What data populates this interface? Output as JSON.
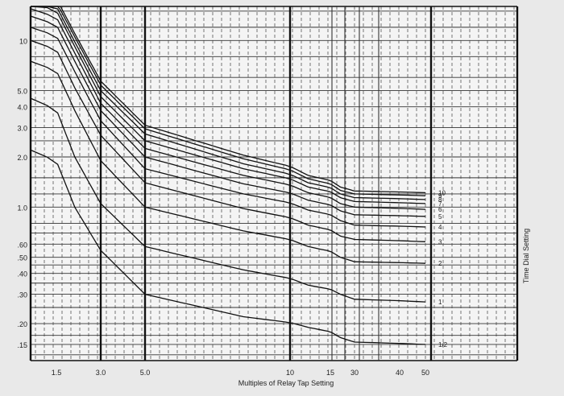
{
  "chart_data": {
    "type": "line",
    "title": "",
    "xlabel": "Multiples of Relay Tap Setting",
    "ylabel": "",
    "side_label": "Time Dial Setting",
    "x_scale": "log",
    "y_scale": "log",
    "xlim": [
      1.4,
      60
    ],
    "ylim": [
      0.12,
      16
    ],
    "grid": true,
    "x_ticks": [
      {
        "value": 1.5,
        "label": "1.5"
      },
      {
        "value": 3.0,
        "label": "3.0"
      },
      {
        "value": 5.0,
        "label": "5.0"
      },
      {
        "value": 10,
        "label": "10"
      },
      {
        "value": 15,
        "label": "15"
      },
      {
        "value": 30,
        "label": "30"
      },
      {
        "value": 40,
        "label": "40"
      },
      {
        "value": 50,
        "label": "50"
      }
    ],
    "y_ticks": [
      {
        "value": 10,
        "label": "10"
      },
      {
        "value": 5.0,
        "label": "5.0"
      },
      {
        "value": 4.0,
        "label": "4.0"
      },
      {
        "value": 3.0,
        "label": "3.0"
      },
      {
        "value": 2.0,
        "label": "2.0"
      },
      {
        "value": 1.0,
        "label": "1.0"
      },
      {
        "value": 0.6,
        "label": ".60"
      },
      {
        "value": 0.5,
        "label": ".50"
      },
      {
        "value": 0.4,
        "label": ".40"
      },
      {
        "value": 0.3,
        "label": ".30"
      },
      {
        "value": 0.2,
        "label": ".20"
      },
      {
        "value": 0.15,
        "label": ".15"
      }
    ],
    "series": [
      {
        "name": "1/2",
        "x": [
          1.4,
          2,
          3,
          5,
          8,
          12,
          20,
          30,
          50
        ],
        "y": [
          2.2,
          1.0,
          0.55,
          0.3,
          0.22,
          0.19,
          0.165,
          0.155,
          0.15
        ]
      },
      {
        "name": "1",
        "x": [
          1.4,
          2,
          3,
          5,
          8,
          12,
          20,
          30,
          50
        ],
        "y": [
          4.5,
          2.0,
          1.05,
          0.58,
          0.42,
          0.34,
          0.3,
          0.28,
          0.27
        ]
      },
      {
        "name": "2",
        "x": [
          1.4,
          2,
          3,
          5,
          8,
          12,
          20,
          30,
          50
        ],
        "y": [
          7.5,
          3.8,
          1.9,
          1.0,
          0.72,
          0.58,
          0.5,
          0.47,
          0.46
        ]
      },
      {
        "name": "3",
        "x": [
          1.4,
          2,
          3,
          5,
          8,
          12,
          20,
          30,
          50
        ],
        "y": [
          10,
          5.2,
          2.7,
          1.4,
          0.98,
          0.78,
          0.67,
          0.64,
          0.62
        ]
      },
      {
        "name": "4",
        "x": [
          1.4,
          2,
          3,
          5,
          8,
          12,
          20,
          30,
          50
        ],
        "y": [
          12,
          6.5,
          3.3,
          1.7,
          1.2,
          0.96,
          0.83,
          0.78,
          0.76
        ]
      },
      {
        "name": "5",
        "x": [
          1.4,
          2,
          3,
          5,
          8,
          12,
          20,
          30,
          50
        ],
        "y": [
          14,
          7.5,
          3.8,
          2.0,
          1.38,
          1.1,
          0.95,
          0.9,
          0.88
        ]
      },
      {
        "name": "6",
        "x": [
          1.4,
          2,
          3,
          5,
          8,
          12,
          20,
          30,
          50
        ],
        "y": [
          15.5,
          8.4,
          4.2,
          2.25,
          1.55,
          1.22,
          1.05,
          1.0,
          0.97
        ]
      },
      {
        "name": "7",
        "x": [
          1.4,
          2,
          3,
          5,
          8,
          12,
          20,
          30,
          50
        ],
        "y": [
          17,
          9.2,
          4.6,
          2.5,
          1.7,
          1.32,
          1.14,
          1.08,
          1.05
        ]
      },
      {
        "name": "8",
        "x": [
          1.4,
          2,
          3,
          5,
          8,
          12,
          20,
          30,
          50
        ],
        "y": [
          18,
          9.8,
          5.0,
          2.75,
          1.82,
          1.4,
          1.2,
          1.14,
          1.11
        ]
      },
      {
        "name": "9",
        "x": [
          1.4,
          2,
          3,
          5,
          8,
          12,
          20,
          30,
          50
        ],
        "y": [
          19,
          10.5,
          5.4,
          2.95,
          1.95,
          1.48,
          1.26,
          1.2,
          1.17
        ]
      },
      {
        "name": "10",
        "x": [
          1.4,
          2,
          3,
          5,
          8,
          12,
          20,
          30,
          50
        ],
        "y": [
          20,
          11,
          5.7,
          3.1,
          2.05,
          1.55,
          1.32,
          1.25,
          1.22
        ]
      }
    ]
  }
}
